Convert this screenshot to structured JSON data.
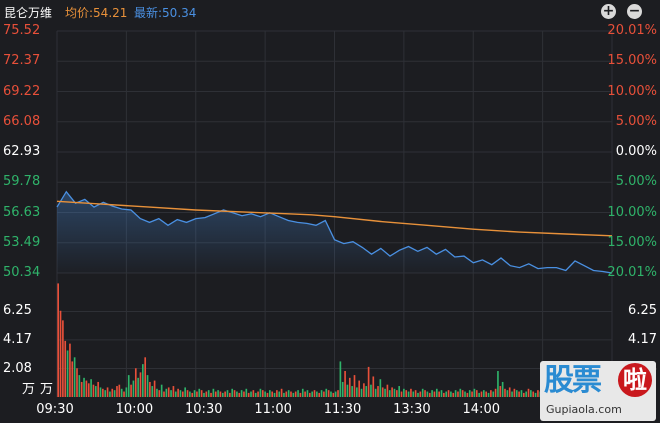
{
  "header": {
    "stock_name": "昆仑万维",
    "avg_price_label": "均价:54.21",
    "latest_label": "最新:50.34",
    "zoom_in": "+",
    "zoom_out": "−"
  },
  "colors": {
    "background": "#1c1d21",
    "up": "#e8503a",
    "down": "#2fb36a",
    "neutral": "#ffffff",
    "price_line": "#4a90e2",
    "avg_line": "#e8913a",
    "grid": "#2e3036"
  },
  "watermark": {
    "chars": "股票",
    "circle_char": "啦",
    "site": "Gupiaola.com"
  },
  "chart_data": [
    {
      "type": "line",
      "title": "",
      "reference_price": 62.93,
      "ylim": [
        50.34,
        75.52
      ],
      "price_axis_labels": [
        "75.52",
        "72.37",
        "69.22",
        "66.08",
        "62.93",
        "59.78",
        "56.63",
        "53.49",
        "50.34"
      ],
      "pct_axis_labels": [
        "20.01%",
        "15.00%",
        "10.00%",
        "5.00%",
        "0.00%",
        "5.00%",
        "10.00%",
        "15.00%",
        "20.01%"
      ],
      "x_tick_labels": [
        "09:30",
        "10:00",
        "10:30",
        "11:00",
        "11:30",
        "13:30",
        "14:00",
        "14"
      ],
      "series": [
        {
          "name": "最新",
          "x": [
            0,
            4,
            8,
            12,
            16,
            20,
            24,
            28,
            32,
            36,
            40,
            44,
            48,
            52,
            56,
            60,
            64,
            68,
            72,
            76,
            80,
            84,
            88,
            92,
            96,
            100,
            104,
            108,
            112,
            116,
            120,
            124,
            128,
            132,
            136,
            140,
            144,
            148,
            152,
            156,
            160,
            164,
            168,
            172,
            176,
            180,
            184,
            188,
            192,
            196,
            200,
            204,
            208,
            212,
            216,
            220,
            224,
            228,
            232,
            236,
            240
          ],
          "values": [
            57.2,
            58.8,
            57.6,
            58.0,
            57.2,
            57.7,
            57.3,
            57.0,
            56.9,
            56.0,
            55.6,
            56.0,
            55.3,
            55.9,
            55.6,
            56.0,
            56.1,
            56.5,
            56.9,
            56.6,
            56.3,
            56.5,
            56.2,
            56.6,
            56.2,
            55.8,
            55.6,
            55.5,
            55.3,
            55.8,
            53.8,
            53.4,
            53.6,
            53.0,
            52.3,
            52.9,
            52.1,
            52.7,
            53.1,
            52.6,
            53.0,
            52.3,
            52.8,
            52.0,
            52.1,
            51.4,
            51.7,
            51.2,
            51.9,
            51.1,
            50.9,
            51.3,
            50.8,
            50.9,
            50.9,
            50.6,
            51.6,
            51.1,
            50.6,
            50.5,
            50.34
          ]
        },
        {
          "name": "均价",
          "x": [
            0,
            20,
            40,
            60,
            80,
            100,
            110,
            120,
            140,
            160,
            180,
            200,
            220,
            240
          ],
          "values": [
            57.8,
            57.5,
            57.2,
            56.9,
            56.7,
            56.5,
            56.4,
            56.2,
            55.7,
            55.3,
            54.9,
            54.6,
            54.4,
            54.21
          ]
        }
      ]
    },
    {
      "type": "bar",
      "title": "",
      "ylabel": "万",
      "ylim": [
        0,
        8.33
      ],
      "y_tick_labels": [
        "6.25",
        "4.17",
        "2.08"
      ],
      "volume_unit_max": 8.33,
      "values": [
        8.3,
        6.3,
        5.6,
        4.1,
        3.4,
        3.9,
        2.6,
        2.9,
        2.1,
        1.6,
        1.1,
        1.4,
        1.2,
        1.0,
        1.3,
        0.9,
        0.8,
        1.1,
        0.7,
        0.6,
        0.5,
        0.7,
        0.4,
        0.6,
        0.5,
        0.8,
        0.9,
        0.6,
        0.4,
        0.7,
        1.6,
        0.9,
        1.2,
        2.1,
        1.4,
        1.8,
        2.4,
        2.9,
        1.6,
        1.1,
        0.8,
        1.2,
        0.6,
        0.5,
        0.9,
        0.4,
        0.6,
        0.7,
        0.5,
        0.8,
        0.4,
        0.6,
        0.5,
        0.4,
        0.7,
        0.5,
        0.4,
        0.3,
        0.5,
        0.4,
        0.6,
        0.5,
        0.3,
        0.4,
        0.5,
        0.3,
        0.6,
        0.4,
        0.5,
        0.4,
        0.3,
        0.4,
        0.5,
        0.3,
        0.6,
        0.5,
        0.4,
        0.3,
        0.5,
        0.4,
        0.6,
        0.3,
        0.4,
        0.5,
        0.3,
        0.4,
        0.6,
        0.5,
        0.4,
        0.3,
        0.5,
        0.4,
        0.3,
        0.5,
        0.4,
        0.6,
        0.3,
        0.4,
        0.5,
        0.4,
        0.3,
        0.4,
        0.5,
        0.3,
        0.6,
        0.4,
        0.5,
        0.3,
        0.4,
        0.5,
        0.4,
        0.3,
        0.5,
        0.4,
        0.6,
        0.5,
        0.4,
        0.3,
        0.4,
        0.5,
        2.6,
        1.1,
        1.9,
        0.9,
        1.4,
        0.8,
        1.6,
        0.7,
        1.2,
        0.6,
        1.0,
        0.8,
        2.2,
        0.9,
        1.5,
        0.6,
        0.8,
        1.3,
        0.7,
        0.6,
        0.9,
        0.5,
        0.7,
        0.6,
        0.5,
        0.8,
        0.4,
        0.6,
        0.5,
        0.4,
        0.6,
        0.4,
        0.5,
        0.3,
        0.4,
        0.6,
        0.5,
        0.4,
        0.3,
        0.5,
        0.4,
        0.6,
        0.4,
        0.5,
        0.3,
        0.4,
        0.5,
        0.4,
        0.3,
        0.5,
        0.4,
        0.6,
        0.5,
        0.4,
        0.3,
        0.5,
        0.4,
        0.6,
        0.5,
        0.3,
        0.4,
        0.5,
        0.4,
        0.3,
        0.5,
        0.4,
        0.6,
        1.9,
        0.8,
        1.1,
        0.6,
        0.5,
        0.7,
        0.4,
        0.6,
        0.5,
        0.4,
        0.5,
        0.3,
        0.4,
        0.6,
        0.5,
        0.4,
        0.3,
        0.5,
        0.4,
        0.6,
        0.4,
        0.5,
        0.3,
        0.4,
        0.5,
        0.4,
        0.3,
        0.5,
        2.5,
        0.9,
        0.6,
        0.5,
        0.4,
        0.6,
        0.5,
        0.4,
        0.3,
        0.5,
        0.4,
        0.6,
        0.5,
        0.4,
        0.3,
        0.5,
        0.4,
        0.6,
        0.5,
        0.4,
        0.6
      ],
      "directions": [
        "up",
        "up",
        "up",
        "up",
        "down",
        "up",
        "up",
        "down",
        "up",
        "down",
        "up",
        "down",
        "up",
        "up",
        "down",
        "up",
        "down",
        "up",
        "down",
        "up",
        "down",
        "up",
        "down",
        "up",
        "down",
        "up",
        "up",
        "down",
        "up",
        "down",
        "down",
        "up",
        "down",
        "up",
        "down",
        "up",
        "down",
        "up",
        "down",
        "up",
        "down",
        "up",
        "down",
        "up",
        "down",
        "up",
        "down",
        "up",
        "down",
        "up",
        "down",
        "up",
        "down",
        "up",
        "down",
        "up",
        "down",
        "up",
        "down",
        "up",
        "down",
        "up",
        "down",
        "up",
        "down",
        "up",
        "down",
        "up",
        "down",
        "up",
        "down",
        "up",
        "down",
        "up",
        "down",
        "up",
        "down",
        "up",
        "down",
        "up",
        "down",
        "up",
        "down",
        "up",
        "down",
        "up",
        "down",
        "up",
        "down",
        "up",
        "down",
        "up",
        "down",
        "up",
        "down",
        "up",
        "down",
        "up",
        "down",
        "up",
        "down",
        "up",
        "down",
        "up",
        "down",
        "up",
        "down",
        "up",
        "down",
        "up",
        "down",
        "up",
        "down",
        "up",
        "down",
        "up",
        "down",
        "up",
        "down",
        "up",
        "down",
        "down",
        "up",
        "down",
        "up",
        "down",
        "up",
        "down",
        "up",
        "down",
        "up",
        "down",
        "up",
        "down",
        "up",
        "down",
        "up",
        "down",
        "up",
        "down",
        "up",
        "down",
        "up",
        "down",
        "up",
        "down",
        "up",
        "down",
        "up",
        "down",
        "up",
        "down",
        "up",
        "down",
        "up",
        "down",
        "up",
        "down",
        "up",
        "down",
        "up",
        "down",
        "up",
        "down",
        "up",
        "down",
        "up",
        "down",
        "up",
        "down",
        "up",
        "down",
        "up",
        "down",
        "up",
        "down",
        "up",
        "down",
        "up",
        "down",
        "up",
        "down",
        "up",
        "down",
        "up",
        "down",
        "up",
        "down",
        "up",
        "down",
        "up",
        "down",
        "up",
        "down",
        "up",
        "down",
        "up",
        "down",
        "up",
        "down",
        "up",
        "down",
        "up",
        "down",
        "up",
        "down",
        "up",
        "down",
        "up",
        "down",
        "up",
        "down",
        "up",
        "down",
        "up",
        "down",
        "up",
        "down",
        "up",
        "down",
        "up",
        "down",
        "up",
        "down",
        "up",
        "down",
        "up",
        "down",
        "up",
        "down",
        "up",
        "down",
        "up",
        "down",
        "up",
        "down",
        "up",
        "down",
        "up",
        "down",
        "up",
        "down",
        "up",
        "down",
        "up",
        "down",
        "up",
        "down",
        "up",
        "down"
      ]
    }
  ]
}
